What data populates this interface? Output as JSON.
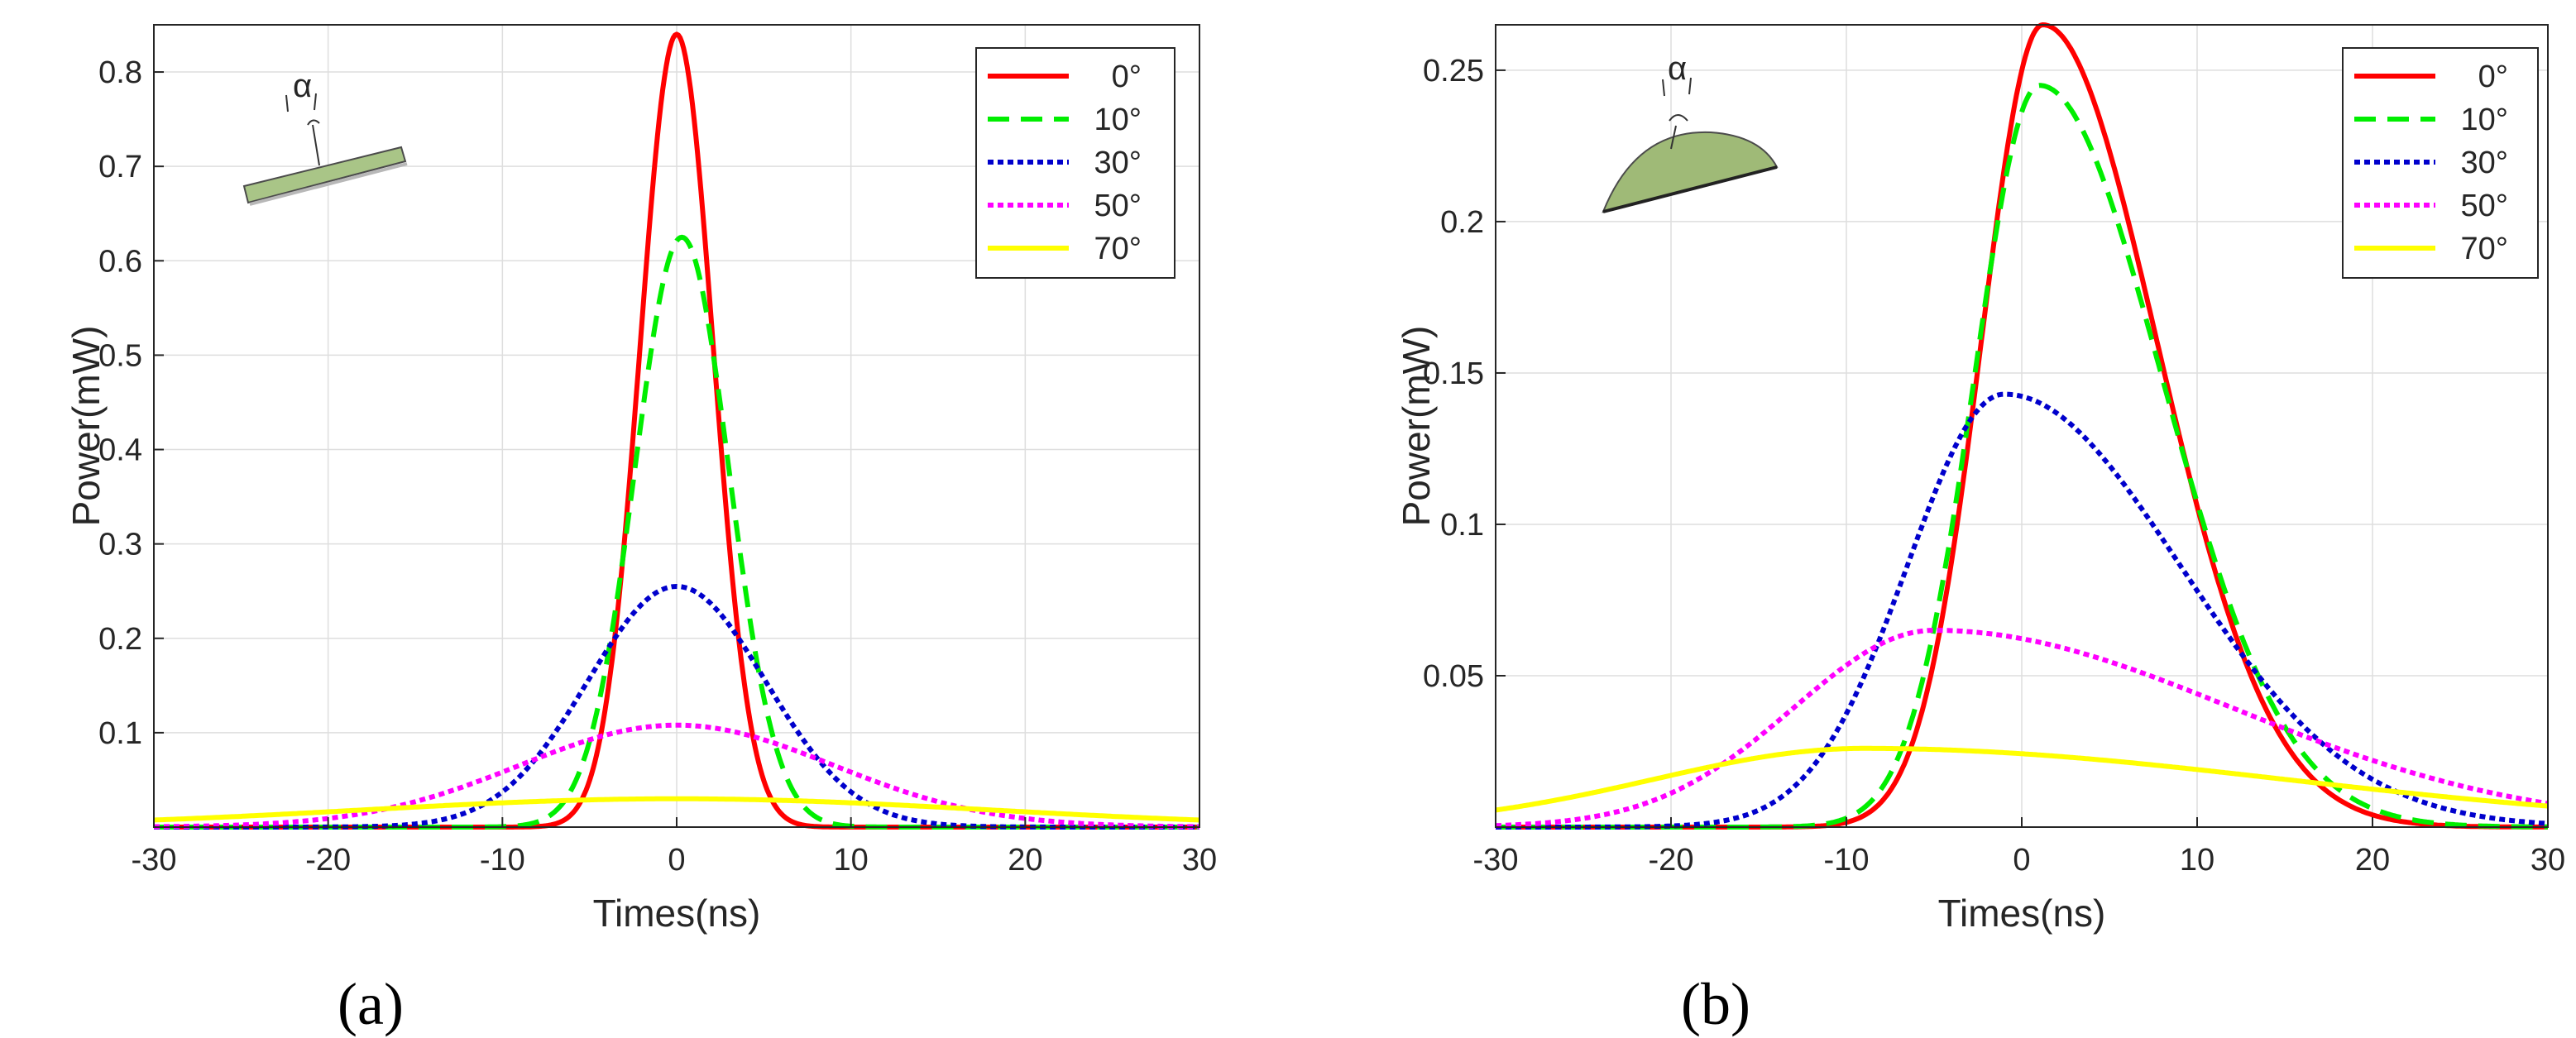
{
  "chart_data": [
    {
      "type": "line",
      "panel_label": "(a)",
      "xlabel": "Times(ns)",
      "ylabel": "Power(mW)",
      "xlim": [
        -30,
        30
      ],
      "ylim": [
        0,
        0.85
      ],
      "xticks": [
        -30,
        -20,
        -10,
        0,
        10,
        20,
        30
      ],
      "yticks": [
        0.1,
        0.2,
        0.3,
        0.4,
        0.5,
        0.6,
        0.7,
        0.8
      ],
      "xtick_labels": [
        "-30",
        "-20",
        "-10",
        "0",
        "10",
        "20",
        "30"
      ],
      "ytick_labels": [
        "0.1",
        "0.2",
        "0.3",
        "0.4",
        "0.5",
        "0.6",
        "0.7",
        "0.8"
      ],
      "grid": true,
      "legend_position": "top-right",
      "inset_label": "α",
      "series": [
        {
          "name": "0°",
          "color": "#ff0000",
          "style": "solid",
          "peak": 0.84,
          "center": 0,
          "sigma_left": 2.1,
          "sigma_right": 2.1
        },
        {
          "name": "10°",
          "color": "#00ee00",
          "style": "dashed",
          "peak": 0.625,
          "center": 0.3,
          "sigma_left": 2.7,
          "sigma_right": 2.7
        },
        {
          "name": "30°",
          "color": "#0000cc",
          "style": "dotted",
          "peak": 0.255,
          "center": 0,
          "sigma_left": 5.1,
          "sigma_right": 5.1
        },
        {
          "name": "50°",
          "color": "#ff00ff",
          "style": "dotted",
          "peak": 0.108,
          "center": 0,
          "sigma_left": 9.0,
          "sigma_right": 9.0
        },
        {
          "name": "70°",
          "color": "#ffff00",
          "style": "solid",
          "peak": 0.03,
          "center": 0,
          "sigma_left": 18.0,
          "sigma_right": 18.0
        }
      ]
    },
    {
      "type": "line",
      "panel_label": "(b)",
      "xlabel": "Times(ns)",
      "ylabel": "Power(mW)",
      "xlim": [
        -30,
        30
      ],
      "ylim": [
        0,
        0.265
      ],
      "xticks": [
        -30,
        -20,
        -10,
        0,
        10,
        20,
        30
      ],
      "yticks": [
        0.05,
        0.1,
        0.15,
        0.2,
        0.25
      ],
      "xtick_labels": [
        "-30",
        "-20",
        "-10",
        "0",
        "10",
        "20",
        "30"
      ],
      "ytick_labels": [
        "0.05",
        "0.1",
        "0.15",
        "0.2",
        "0.25"
      ],
      "grid": true,
      "legend_position": "top-right",
      "inset_label": "α",
      "series": [
        {
          "name": "0°",
          "color": "#ff0000",
          "style": "solid",
          "peak": 0.265,
          "center": 1.2,
          "sigma_left": 3.5,
          "sigma_right": 6.5
        },
        {
          "name": "10°",
          "color": "#00ee00",
          "style": "dashed",
          "peak": 0.245,
          "center": 1.0,
          "sigma_left": 3.7,
          "sigma_right": 7.0
        },
        {
          "name": "30°",
          "color": "#0000cc",
          "style": "dotted",
          "peak": 0.143,
          "center": -1.0,
          "sigma_left": 5.5,
          "sigma_right": 10.0
        },
        {
          "name": "50°",
          "color": "#ff00ff",
          "style": "dotted",
          "peak": 0.065,
          "center": -5.0,
          "sigma_left": 8.0,
          "sigma_right": 17.0
        },
        {
          "name": "70°",
          "color": "#ffff00",
          "style": "solid",
          "peak": 0.026,
          "center": -9.0,
          "sigma_left": 12.0,
          "sigma_right": 24.0
        }
      ]
    }
  ]
}
